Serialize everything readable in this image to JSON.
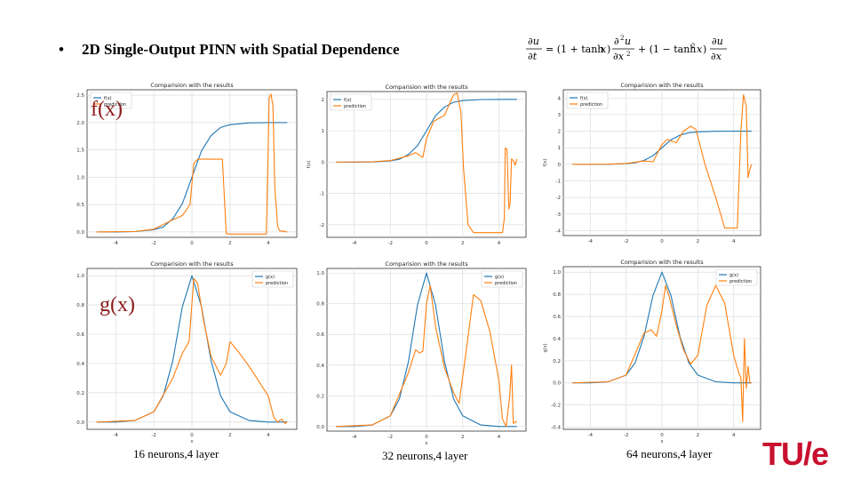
{
  "slide": {
    "bullet": "•",
    "title": "2D Single-Output PINN with Spatial Dependence",
    "row_labels": {
      "top": "f(x)",
      "bottom": "g(x)"
    },
    "captions": [
      "16 neurons,4  layer",
      "32 neurons,4  layer",
      "64 neurons,4  layer"
    ],
    "logo_text": "TU/e",
    "colors": {
      "reference": "#1f77b4",
      "prediction": "#ff7f0e",
      "label": "#8b1a1a",
      "logo": "#c8102e"
    }
  },
  "chart_data": [
    {
      "type": "line",
      "title": "Comparision with the results",
      "xlabel": "",
      "ylabel": "",
      "xlim": [
        -5.5,
        5.5
      ],
      "ylim": [
        -0.1,
        2.6
      ],
      "xticks": [
        -4,
        -2,
        0,
        2,
        4
      ],
      "yticks": [
        0.0,
        0.5,
        1.0,
        1.5,
        2.0,
        2.5
      ],
      "legend": [
        "f(x)",
        "prediction"
      ],
      "legend_position": "top-left",
      "grid": true,
      "series": [
        {
          "name": "f(x)",
          "x": [
            -5,
            -4,
            -3,
            -2,
            -1.5,
            -1,
            -0.5,
            0,
            0.5,
            1,
            1.5,
            2,
            3,
            4,
            5
          ],
          "y": [
            0,
            0,
            0.005,
            0.04,
            0.09,
            0.24,
            0.52,
            1.0,
            1.48,
            1.76,
            1.91,
            1.96,
            1.995,
            2.0,
            2.0
          ]
        },
        {
          "name": "prediction",
          "x": [
            -5,
            -3,
            -2,
            -1,
            -0.5,
            -0.1,
            0.1,
            0.3,
            1,
            1.6,
            1.8,
            2,
            3,
            3.9,
            4.0,
            4.05,
            4.15,
            4.25,
            4.35,
            4.5,
            4.6,
            4.8,
            5.0
          ],
          "y": [
            0,
            0.005,
            0.05,
            0.22,
            0.3,
            0.5,
            1.25,
            1.33,
            1.33,
            1.33,
            -0.03,
            -0.04,
            -0.04,
            -0.04,
            1.5,
            2.45,
            2.52,
            2.3,
            0.8,
            0.1,
            0.02,
            0.01,
            0.0
          ]
        }
      ]
    },
    {
      "type": "line",
      "title": "Comparision with the results",
      "xlabel": "",
      "ylabel": "f(x)",
      "xlim": [
        -5.5,
        5.5
      ],
      "ylim": [
        -2.4,
        2.25
      ],
      "xticks": [
        -4,
        -2,
        0,
        2,
        4
      ],
      "yticks": [
        -2,
        -1,
        0,
        1,
        2
      ],
      "legend": [
        "f(x)",
        "prediction"
      ],
      "legend_position": "top-left",
      "grid": true,
      "series": [
        {
          "name": "f(x)",
          "x": [
            -5,
            -4,
            -3,
            -2,
            -1.5,
            -1,
            -0.5,
            0,
            0.5,
            1,
            1.5,
            2,
            3,
            4,
            5
          ],
          "y": [
            0,
            0,
            0.005,
            0.04,
            0.09,
            0.24,
            0.52,
            1.0,
            1.48,
            1.76,
            1.91,
            1.96,
            1.995,
            2.0,
            2.0
          ]
        },
        {
          "name": "prediction",
          "x": [
            -5,
            -3,
            -2,
            -1,
            -0.6,
            -0.2,
            0,
            0.4,
            1,
            1.3,
            1.5,
            1.7,
            1.9,
            2.05,
            2.3,
            2.6,
            3.5,
            4.2,
            4.3,
            4.35,
            4.45,
            4.55,
            4.62,
            4.7,
            4.8,
            4.9,
            5.0
          ],
          "y": [
            0,
            0.01,
            0.05,
            0.2,
            0.3,
            0.15,
            0.75,
            1.3,
            1.5,
            1.9,
            2.15,
            2.2,
            1.6,
            -0.2,
            -2.0,
            -2.25,
            -2.25,
            -2.25,
            -1.8,
            0.45,
            0.4,
            -1.5,
            -1.3,
            0.1,
            0.05,
            -0.1,
            0.1
          ]
        }
      ]
    },
    {
      "type": "line",
      "title": "Comparision with the results",
      "xlabel": "",
      "ylabel": "f(x)",
      "xlim": [
        -5.5,
        5.5
      ],
      "ylim": [
        -4.3,
        4.5
      ],
      "xticks": [
        -4,
        -2,
        0,
        2,
        4
      ],
      "yticks": [
        -4,
        -3,
        -2,
        -1,
        0,
        1,
        2,
        3,
        4
      ],
      "legend": [
        "f(x)",
        "prediction"
      ],
      "legend_position": "top-left",
      "grid": true,
      "series": [
        {
          "name": "f(x)",
          "x": [
            -5,
            -4,
            -3,
            -2,
            -1.5,
            -1,
            -0.5,
            0,
            0.5,
            1,
            1.5,
            2,
            3,
            4,
            5
          ],
          "y": [
            0,
            0,
            0.005,
            0.04,
            0.09,
            0.24,
            0.52,
            1.0,
            1.48,
            1.76,
            1.91,
            1.96,
            1.995,
            2.0,
            2.0
          ]
        },
        {
          "name": "prediction",
          "x": [
            -5,
            -3,
            -2,
            -1,
            -0.5,
            0,
            0.3,
            0.8,
            1.2,
            1.6,
            1.9,
            2.4,
            3,
            3.5,
            4.0,
            4.2,
            4.4,
            4.55,
            4.7,
            4.8,
            4.9,
            5.0
          ],
          "y": [
            0,
            0.01,
            0.05,
            0.2,
            0.15,
            1.2,
            1.5,
            1.3,
            2.0,
            2.3,
            2.1,
            0,
            -2.0,
            -3.85,
            -3.85,
            -3.85,
            2.0,
            4.2,
            3.5,
            -0.8,
            -0.3,
            0
          ]
        }
      ]
    },
    {
      "type": "line",
      "title": "Comparision with the results",
      "xlabel": "x",
      "ylabel": "",
      "xlim": [
        -5.5,
        5.5
      ],
      "ylim": [
        -0.05,
        1.05
      ],
      "xticks": [
        -4,
        -2,
        0,
        2,
        4
      ],
      "yticks": [
        0.0,
        0.2,
        0.4,
        0.6,
        0.8,
        1.0
      ],
      "legend": [
        "g(x)",
        "prediction"
      ],
      "legend_position": "top-right",
      "grid": true,
      "series": [
        {
          "name": "g(x)",
          "x": [
            -5,
            -4,
            -3,
            -2,
            -1.5,
            -1,
            -0.5,
            0,
            0.5,
            1,
            1.5,
            2,
            3,
            4,
            5
          ],
          "y": [
            0,
            0,
            0.01,
            0.07,
            0.18,
            0.42,
            0.79,
            1.0,
            0.79,
            0.42,
            0.18,
            0.07,
            0.01,
            0,
            0
          ]
        },
        {
          "name": "prediction",
          "x": [
            -5,
            -3,
            -2,
            -1,
            -0.5,
            -0.15,
            0.1,
            0.3,
            0.6,
            1,
            1.5,
            1.8,
            2,
            2.5,
            3,
            3.5,
            4,
            4.3,
            4.5,
            4.7,
            4.9,
            5.0
          ],
          "y": [
            0,
            0.01,
            0.07,
            0.3,
            0.47,
            0.55,
            0.98,
            0.95,
            0.7,
            0.45,
            0.32,
            0.4,
            0.55,
            0.47,
            0.38,
            0.28,
            0.18,
            0.03,
            0.0,
            0.02,
            -0.01,
            0.0
          ]
        }
      ]
    },
    {
      "type": "line",
      "title": "Comparision with the results",
      "xlabel": "x",
      "ylabel": "",
      "xlim": [
        -5.5,
        5.5
      ],
      "ylim": [
        -0.03,
        1.03
      ],
      "xticks": [
        -4,
        -2,
        0,
        2,
        4
      ],
      "yticks": [
        0.0,
        0.2,
        0.4,
        0.6,
        0.8,
        1.0
      ],
      "legend": [
        "g(x)",
        "prediction"
      ],
      "legend_position": "top-right",
      "grid": true,
      "series": [
        {
          "name": "g(x)",
          "x": [
            -5,
            -4,
            -3,
            -2,
            -1.5,
            -1,
            -0.5,
            0,
            0.5,
            1,
            1.5,
            2,
            3,
            4,
            5
          ],
          "y": [
            0,
            0,
            0.01,
            0.07,
            0.18,
            0.42,
            0.79,
            1.0,
            0.79,
            0.42,
            0.18,
            0.07,
            0.01,
            0,
            0
          ]
        },
        {
          "name": "prediction",
          "x": [
            -5,
            -3,
            -2,
            -1,
            -0.6,
            -0.4,
            -0.2,
            0,
            0.2,
            0.5,
            1,
            1.5,
            1.8,
            2.2,
            2.6,
            3,
            3.5,
            4,
            4.2,
            4.4,
            4.6,
            4.7,
            4.8,
            4.9,
            5.0
          ],
          "y": [
            0,
            0.01,
            0.07,
            0.35,
            0.5,
            0.48,
            0.49,
            0.8,
            0.92,
            0.65,
            0.38,
            0.22,
            0.15,
            0.5,
            0.86,
            0.82,
            0.62,
            0.3,
            0.05,
            0.0,
            0.2,
            0.4,
            0.02,
            0.03,
            0.03
          ]
        }
      ]
    },
    {
      "type": "line",
      "title": "Comparision with the results",
      "xlabel": "x",
      "ylabel": "g(x)",
      "xlim": [
        -5.5,
        5.5
      ],
      "ylim": [
        -0.42,
        1.05
      ],
      "xticks": [
        -4,
        -2,
        0,
        2,
        4
      ],
      "yticks": [
        -0.4,
        -0.2,
        0.0,
        0.2,
        0.4,
        0.6,
        0.8,
        1.0
      ],
      "legend": [
        "g(x)",
        "prediction"
      ],
      "legend_position": "top-right",
      "grid": true,
      "series": [
        {
          "name": "g(x)",
          "x": [
            -5,
            -4,
            -3,
            -2,
            -1.5,
            -1,
            -0.5,
            0,
            0.5,
            1,
            1.5,
            2,
            3,
            4,
            5
          ],
          "y": [
            0,
            0,
            0.01,
            0.07,
            0.18,
            0.42,
            0.79,
            1.0,
            0.79,
            0.42,
            0.18,
            0.07,
            0.01,
            0,
            0
          ]
        },
        {
          "name": "prediction",
          "x": [
            -5,
            -3,
            -2,
            -1,
            -0.6,
            -0.3,
            0,
            0.2,
            0.4,
            0.8,
            1.2,
            1.6,
            2,
            2.5,
            3,
            3.5,
            4,
            4.3,
            4.4,
            4.5,
            4.6,
            4.7,
            4.8,
            4.9,
            5.0
          ],
          "y": [
            0,
            0.01,
            0.07,
            0.45,
            0.48,
            0.42,
            0.65,
            0.88,
            0.78,
            0.52,
            0.3,
            0.17,
            0.25,
            0.7,
            0.88,
            0.72,
            0.25,
            0.08,
            0.05,
            -0.35,
            0.4,
            -0.05,
            0.15,
            0.0,
            0.0
          ]
        }
      ]
    }
  ]
}
